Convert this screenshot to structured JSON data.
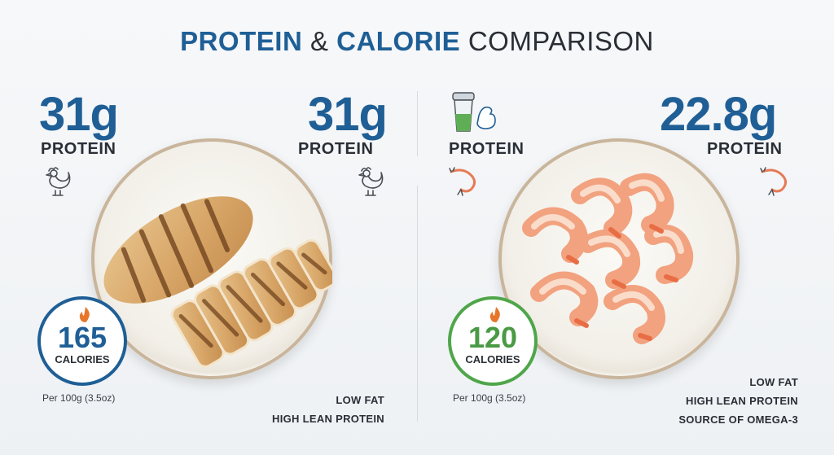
{
  "title": {
    "part1": "PROTEIN",
    "amp": "&",
    "part2": "CALORIE",
    "part3": "COMPARISON"
  },
  "left": {
    "protein_left": "31g",
    "protein_left_label": "PROTEIN",
    "protein_right": "31g",
    "protein_right_label": "PROTEIN",
    "calories": "165",
    "calories_label": "CALORIES",
    "per": "Per 100g (3.5oz)",
    "features": [
      "LOW FAT",
      "HIGH LEAN PROTEIN"
    ],
    "icons": [
      "chicken-icon",
      "chicken-icon",
      "flame-icon"
    ],
    "accent": "#1f5f96"
  },
  "right": {
    "protein_left_label": "PROTEIN",
    "protein_right": "22.8g",
    "protein_right_label": "PROTEIN",
    "calories": "120",
    "calories_label": "CALORIES",
    "per": "Per 100g (3.5oz)",
    "features": [
      "LOW FAT",
      "HIGH LEAN PROTEIN",
      "SOURCE OF OMEGA-3"
    ],
    "icons": [
      "shaker-bicep-icon",
      "shrimp-icon",
      "shrimp-icon",
      "flame-icon"
    ],
    "accent": "#4fa64a"
  }
}
